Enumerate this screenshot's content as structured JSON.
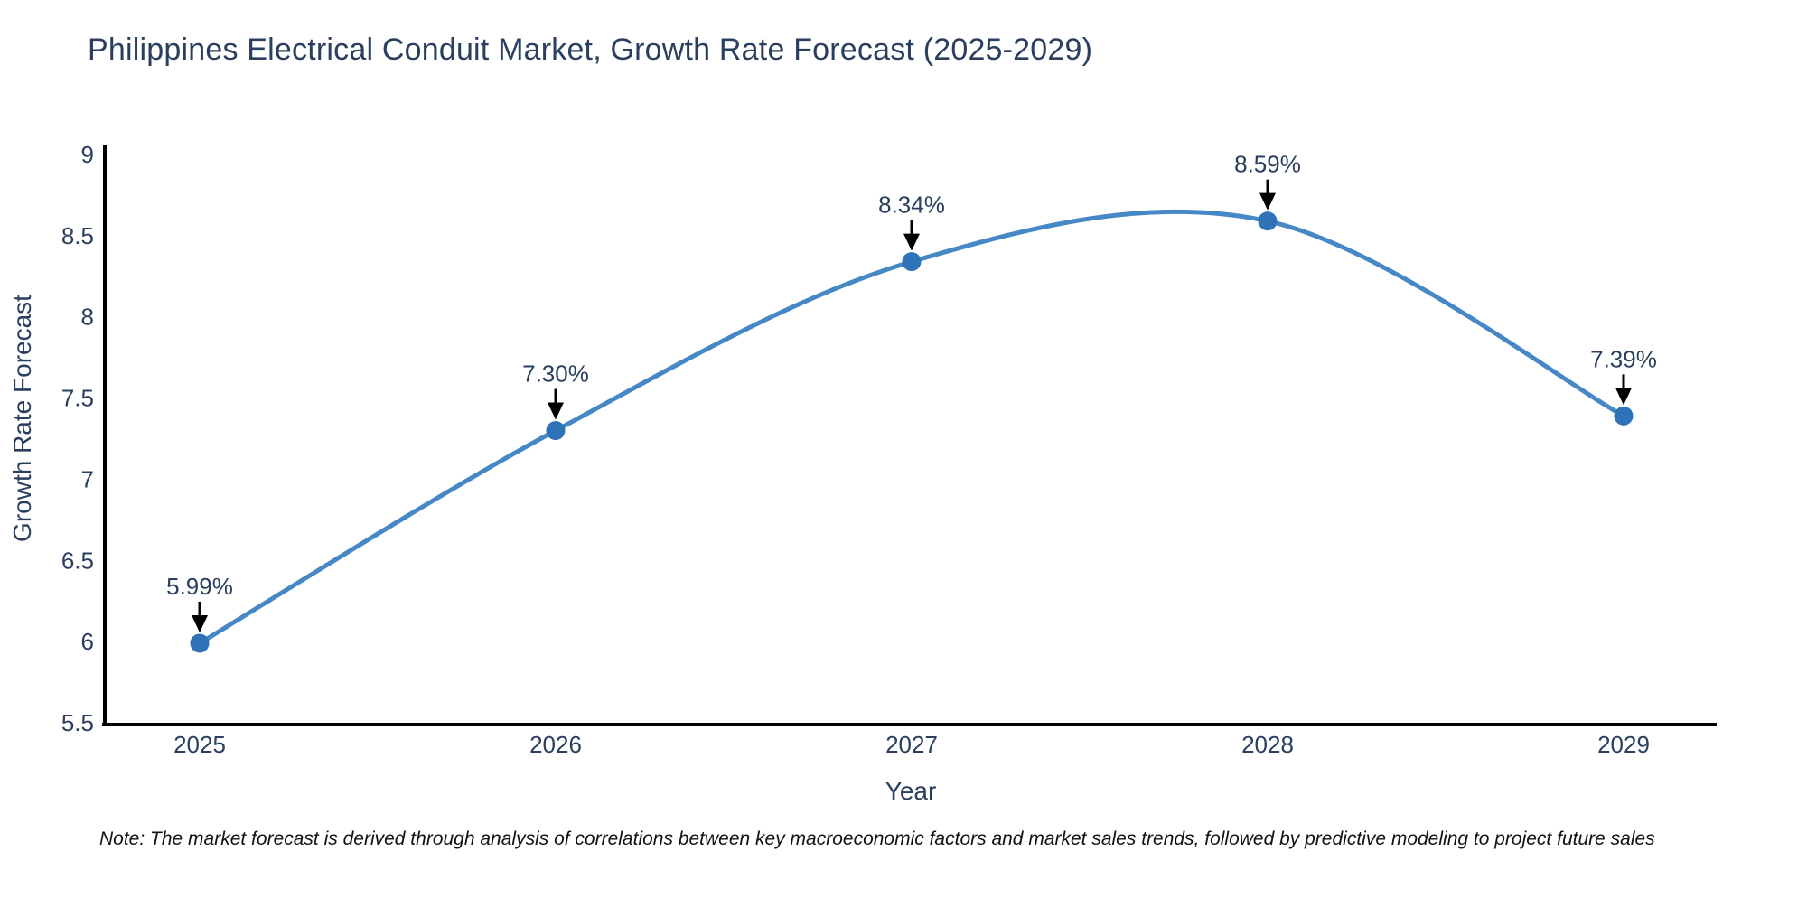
{
  "chart_data": {
    "type": "line",
    "title": "Philippines Electrical Conduit Market, Growth Rate Forecast (2025-2029)",
    "xlabel": "Year",
    "ylabel": "Growth Rate Forecast",
    "x": [
      2025,
      2026,
      2027,
      2028,
      2029
    ],
    "y": [
      5.99,
      7.3,
      8.34,
      8.59,
      7.39
    ],
    "point_labels": [
      "5.99%",
      "7.30%",
      "8.34%",
      "8.59%",
      "7.39%"
    ],
    "xtick_labels": [
      "2025",
      "2026",
      "2027",
      "2028",
      "2029"
    ],
    "ytick_values": [
      5.5,
      6,
      6.5,
      7,
      7.5,
      8,
      8.5,
      9
    ],
    "ytick_labels": [
      "5.5",
      "6",
      "6.5",
      "7",
      "7.5",
      "8",
      "8.5",
      "9"
    ],
    "ylim": [
      5.5,
      9
    ],
    "line_shape": "spline",
    "grid": false,
    "legend": false,
    "colors": {
      "line": "#4688c6",
      "marker": "#2e73b8",
      "axis": "#000000",
      "text": "#2a3f5f",
      "arrow": "#000000",
      "background": "#ffffff"
    },
    "note": "Note: The market forecast is derived through analysis of correlations between key macroeconomic factors and market sales trends, followed by predictive modeling to project future sales"
  }
}
